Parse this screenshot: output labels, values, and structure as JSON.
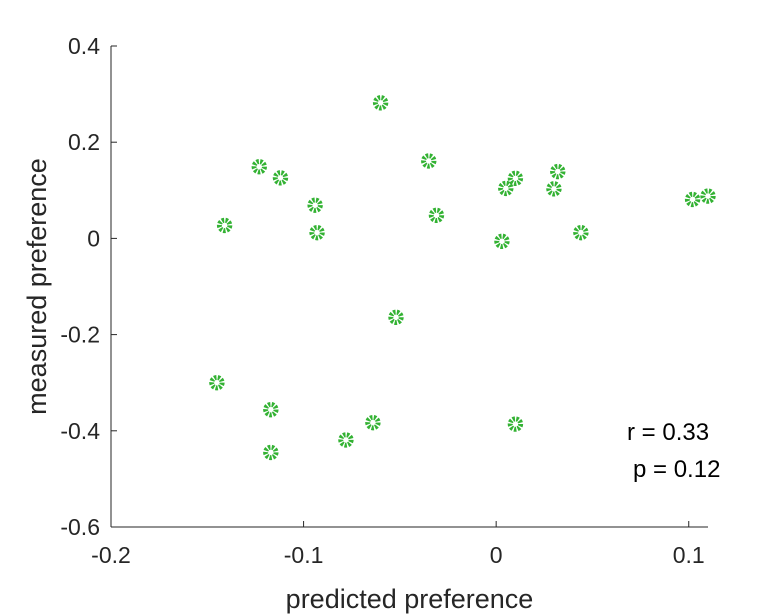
{
  "chart_data": {
    "type": "scatter",
    "xlabel": "predicted preference",
    "ylabel": "measured preference",
    "xlim": [
      -0.2,
      0.11
    ],
    "ylim": [
      -0.6,
      0.4
    ],
    "xticks": [
      -0.2,
      -0.1,
      0,
      0.1
    ],
    "xtick_labels": [
      "-0.2",
      "-0.1",
      "0",
      "0.1"
    ],
    "yticks": [
      -0.6,
      -0.4,
      -0.2,
      0,
      0.2,
      0.4
    ],
    "ytick_labels": [
      "-0.6",
      "-0.4",
      "-0.2",
      "0",
      "0.2",
      "0.4"
    ],
    "grid": false,
    "marker_color": "#33b233",
    "points": [
      {
        "x": -0.06,
        "y": 0.282
      },
      {
        "x": -0.123,
        "y": 0.149
      },
      {
        "x": -0.112,
        "y": 0.126
      },
      {
        "x": -0.035,
        "y": 0.161
      },
      {
        "x": 0.032,
        "y": 0.139
      },
      {
        "x": 0.01,
        "y": 0.125
      },
      {
        "x": 0.005,
        "y": 0.104
      },
      {
        "x": 0.03,
        "y": 0.103
      },
      {
        "x": -0.094,
        "y": 0.069
      },
      {
        "x": -0.031,
        "y": 0.048
      },
      {
        "x": 0.102,
        "y": 0.081
      },
      {
        "x": 0.11,
        "y": 0.088
      },
      {
        "x": -0.141,
        "y": 0.027
      },
      {
        "x": -0.093,
        "y": 0.012
      },
      {
        "x": 0.044,
        "y": 0.012
      },
      {
        "x": 0.003,
        "y": -0.006
      },
      {
        "x": -0.052,
        "y": -0.164
      },
      {
        "x": -0.145,
        "y": -0.3
      },
      {
        "x": -0.117,
        "y": -0.356
      },
      {
        "x": -0.064,
        "y": -0.383
      },
      {
        "x": 0.01,
        "y": -0.386
      },
      {
        "x": -0.078,
        "y": -0.419
      },
      {
        "x": -0.117,
        "y": -0.445
      }
    ],
    "annotations": [
      "r = 0.33",
      "p = 0.12"
    ]
  }
}
